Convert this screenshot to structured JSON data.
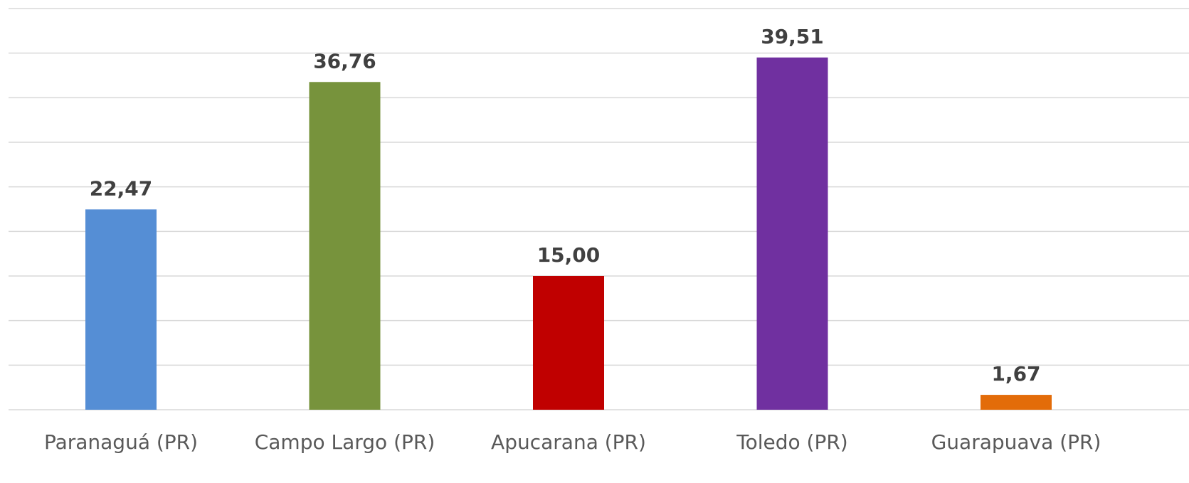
{
  "chart_data": {
    "type": "bar",
    "categories": [
      "Paranaguá (PR)",
      "Campo Largo (PR)",
      "Apucarana (PR)",
      "Toledo (PR)",
      "Guarapuava (PR)"
    ],
    "values": [
      22.47,
      36.76,
      15.0,
      39.51,
      1.67
    ],
    "data_labels": [
      "22,47",
      "36,76",
      "15,00",
      "39,51",
      "1,67"
    ],
    "colors": [
      "#558ed5",
      "#77933c",
      "#c00000",
      "#7030a0",
      "#e36c09"
    ],
    "title": "",
    "xlabel": "",
    "ylabel": "",
    "ylim": [
      0,
      45
    ],
    "grid": true,
    "gridline_step": 5,
    "legend": "none"
  }
}
